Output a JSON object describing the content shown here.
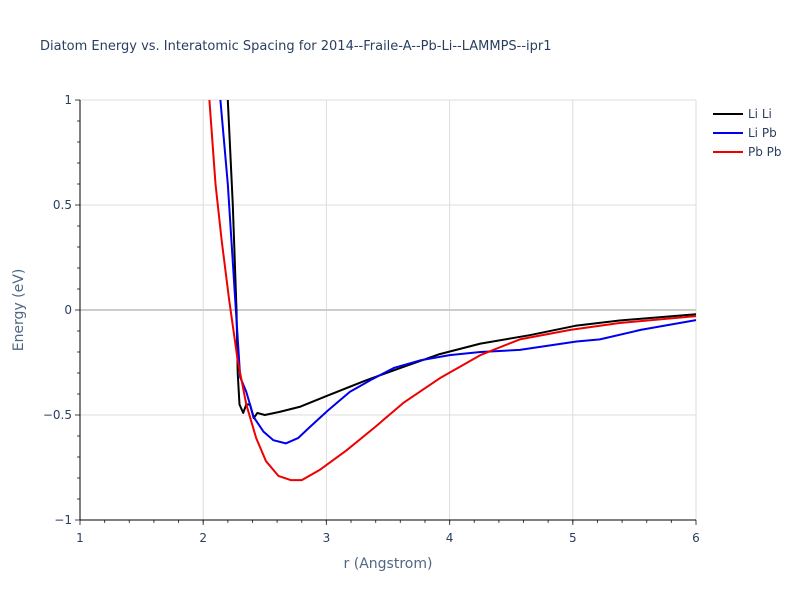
{
  "chart_data": {
    "type": "line",
    "title": "Diatom Energy vs. Interatomic Spacing for 2014--Fraile-A--Pb-Li--LAMMPS--ipr1",
    "xlabel": "r (Angstrom)",
    "ylabel": "Energy (eV)",
    "xlim": [
      1,
      6
    ],
    "ylim": [
      -1,
      1
    ],
    "x_ticks": [
      1,
      2,
      3,
      4,
      5,
      6
    ],
    "x_tick_labels": [
      "1",
      "2",
      "3",
      "4",
      "5",
      "6"
    ],
    "x_minor_step": 0.2,
    "y_ticks": [
      1,
      0.5,
      0,
      -0.5,
      -1
    ],
    "y_tick_labels": [
      "1",
      "0.5",
      "0",
      "−0.5",
      "−1"
    ],
    "y_minor_step": 0.1,
    "grid": true,
    "legend_position": "top-right",
    "series": [
      {
        "name": "Li Li",
        "color": "#000000",
        "x": [
          2.2,
          2.24,
          2.27,
          2.28,
          2.295,
          2.325,
          2.35,
          2.38,
          2.41,
          2.44,
          2.5,
          2.62,
          2.79,
          3.0,
          3.32,
          3.63,
          3.92,
          4.25,
          4.65,
          5.02,
          5.38,
          6.0
        ],
        "y": [
          1.0,
          0.5,
          0.0,
          -0.3,
          -0.45,
          -0.49,
          -0.45,
          -0.45,
          -0.515,
          -0.49,
          -0.5,
          -0.485,
          -0.46,
          -0.41,
          -0.335,
          -0.27,
          -0.21,
          -0.16,
          -0.12,
          -0.075,
          -0.05,
          -0.02
        ]
      },
      {
        "name": "Li Pb",
        "color": "#0000ee",
        "x": [
          2.14,
          2.2,
          2.26,
          2.3,
          2.35,
          2.41,
          2.49,
          2.57,
          2.67,
          2.77,
          2.86,
          3.01,
          3.19,
          3.37,
          3.55,
          3.76,
          4.0,
          4.25,
          4.57,
          5.03,
          5.22,
          5.55,
          6.0
        ],
        "y": [
          1.0,
          0.6,
          0.05,
          -0.32,
          -0.39,
          -0.51,
          -0.58,
          -0.62,
          -0.635,
          -0.61,
          -0.56,
          -0.48,
          -0.39,
          -0.33,
          -0.275,
          -0.24,
          -0.215,
          -0.2,
          -0.19,
          -0.15,
          -0.14,
          -0.095,
          -0.048
        ]
      },
      {
        "name": "Pb Pb",
        "color": "#ee0000",
        "x": [
          2.05,
          2.1,
          2.15,
          2.21,
          2.28,
          2.35,
          2.43,
          2.51,
          2.61,
          2.71,
          2.8,
          2.95,
          3.16,
          3.39,
          3.63,
          3.92,
          4.25,
          4.57,
          4.98,
          5.38,
          6.0
        ],
        "y": [
          1.0,
          0.6,
          0.33,
          0.05,
          -0.24,
          -0.45,
          -0.61,
          -0.72,
          -0.79,
          -0.81,
          -0.81,
          -0.76,
          -0.67,
          -0.56,
          -0.44,
          -0.325,
          -0.215,
          -0.14,
          -0.095,
          -0.062,
          -0.029
        ]
      }
    ]
  }
}
